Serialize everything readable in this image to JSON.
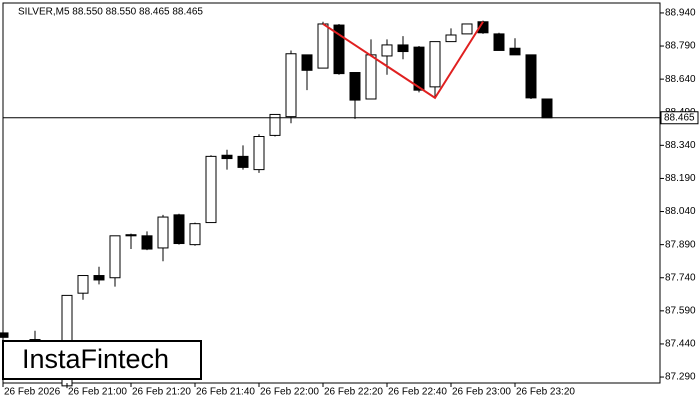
{
  "chart_data": {
    "type": "candlestick",
    "title": "SILVER,M5  88.550 88.550 88.465 88.465",
    "watermark": "InstaFintech",
    "categories": [
      "26 Feb 2026",
      null,
      null,
      null,
      "26 Feb 21:00",
      null,
      null,
      null,
      "26 Feb 21:20",
      null,
      null,
      null,
      "26 Feb 21:40",
      null,
      null,
      null,
      "26 Feb 22:00",
      null,
      null,
      null,
      "26 Feb 22:20",
      null,
      null,
      null,
      "26 Feb 22:40",
      null,
      null,
      null,
      "26 Feb 23:00",
      null,
      null,
      null,
      "26 Feb 23:20",
      null,
      null
    ],
    "open": [
      87.49,
      null,
      87.46,
      null,
      87.25,
      87.67,
      87.75,
      87.74,
      87.935,
      87.93,
      87.875,
      88.025,
      87.89,
      87.99,
      88.295,
      88.29,
      88.23,
      88.385,
      88.47,
      88.75,
      88.69,
      88.885,
      88.67,
      88.55,
      88.745,
      88.795,
      88.785,
      88.605,
      88.81,
      88.845,
      88.9,
      88.845,
      88.78,
      88.75,
      88.55
    ],
    "high": [
      87.5,
      null,
      87.5,
      null,
      87.66,
      87.75,
      87.79,
      87.93,
      87.94,
      87.95,
      88.025,
      88.03,
      87.99,
      88.295,
      88.32,
      88.34,
      88.39,
      88.48,
      88.77,
      88.75,
      88.9,
      88.89,
      88.67,
      88.82,
      88.82,
      88.835,
      88.79,
      88.81,
      88.87,
      88.89,
      88.905,
      88.85,
      88.825,
      88.75,
      88.55
    ],
    "low": [
      87.46,
      null,
      87.45,
      null,
      87.24,
      87.64,
      87.71,
      87.7,
      87.87,
      87.865,
      87.815,
      87.89,
      87.885,
      87.99,
      88.23,
      88.23,
      88.215,
      88.38,
      88.44,
      88.59,
      88.69,
      88.66,
      88.46,
      88.55,
      88.66,
      88.73,
      88.58,
      88.555,
      88.81,
      88.845,
      88.845,
      88.77,
      88.75,
      88.55,
      88.465
    ],
    "close": [
      87.47,
      null,
      87.46,
      null,
      87.66,
      87.75,
      87.73,
      87.93,
      87.93,
      87.87,
      88.015,
      87.895,
      87.985,
      88.29,
      88.28,
      88.24,
      88.38,
      88.48,
      88.755,
      88.68,
      88.89,
      88.665,
      88.545,
      88.75,
      88.795,
      88.765,
      88.59,
      88.81,
      88.84,
      88.89,
      88.85,
      88.77,
      88.75,
      88.555,
      88.465
    ],
    "up_color": "#ffffff",
    "down_color": "#000000",
    "pattern": {
      "color": "#e02020",
      "x": [
        20,
        27,
        30
      ],
      "y": [
        88.89,
        88.555,
        88.9
      ]
    },
    "current_price": {
      "value": 88.465,
      "label": "88.465"
    },
    "ylim": [
      87.263,
      88.985
    ],
    "yticks": [
      {
        "value": 88.94,
        "label": "88.940"
      },
      {
        "value": 88.79,
        "label": "88.790"
      },
      {
        "value": 88.64,
        "label": "88.640"
      },
      {
        "value": 88.49,
        "label": "88.490"
      },
      {
        "value": 88.34,
        "label": "88.340"
      },
      {
        "value": 88.19,
        "label": "88.190"
      },
      {
        "value": 88.04,
        "label": "88.040"
      },
      {
        "value": 87.89,
        "label": "87.890"
      },
      {
        "value": 87.74,
        "label": "87.740"
      },
      {
        "value": 87.59,
        "label": "87.590"
      },
      {
        "value": 87.44,
        "label": "87.440"
      },
      {
        "value": 87.29,
        "label": "87.290"
      }
    ]
  }
}
